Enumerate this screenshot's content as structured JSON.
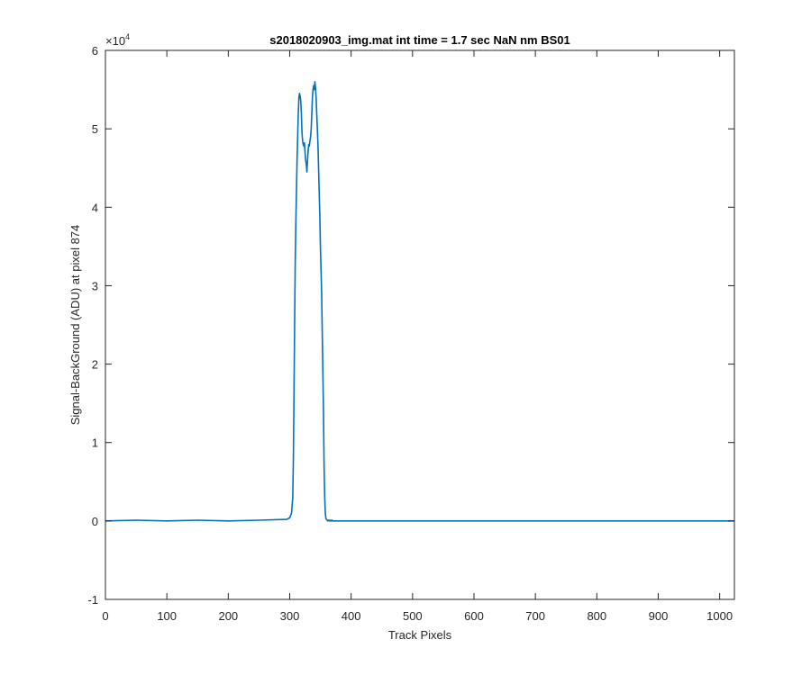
{
  "chart_data": {
    "type": "line",
    "title": "s2018020903_img.mat int time = 1.7 sec  NaN nm BS01",
    "xlabel": "Track Pixels",
    "ylabel": "Signal-BackGround (ADU) at pixel 874",
    "xlim": [
      0,
      1024
    ],
    "ylim": [
      -1,
      6
    ],
    "y_exponent_base": "×10",
    "y_exponent_power": "4",
    "x_ticks": [
      0,
      100,
      200,
      300,
      400,
      500,
      600,
      700,
      800,
      900,
      1000
    ],
    "x_tick_labels": [
      "0",
      "100",
      "200",
      "300",
      "400",
      "500",
      "600",
      "700",
      "800",
      "900",
      "1000"
    ],
    "y_ticks": [
      -1,
      0,
      1,
      2,
      3,
      4,
      5,
      6
    ],
    "y_tick_labels": [
      "-1",
      "0",
      "1",
      "2",
      "3",
      "4",
      "5",
      "6"
    ],
    "grid": false,
    "line_color": "#0072bd",
    "series": [
      {
        "x": [
          0,
          50,
          100,
          150,
          200,
          250,
          295,
          300,
          303,
          305,
          306,
          307,
          308,
          309,
          310,
          311,
          312,
          313,
          314,
          315,
          316,
          317,
          318,
          319,
          320,
          321,
          322,
          323,
          324,
          325,
          326,
          327,
          328,
          329,
          330,
          331,
          332,
          333,
          334,
          335,
          336,
          337,
          338,
          339,
          340,
          341,
          342,
          343,
          344,
          345,
          346,
          347,
          348,
          349,
          350,
          351,
          352,
          353,
          354,
          355,
          356,
          357,
          358,
          359,
          360,
          361,
          362,
          363,
          364,
          365,
          366,
          367,
          368,
          369,
          370,
          372,
          375,
          380,
          400,
          450,
          500,
          550,
          600,
          650,
          700,
          750,
          800,
          850,
          900,
          950,
          1000,
          1024
        ],
        "y": [
          0.0,
          0.01,
          0.0,
          0.01,
          0.0,
          0.01,
          0.02,
          0.04,
          0.1,
          0.3,
          0.8,
          1.6,
          2.5,
          3.3,
          3.8,
          4.2,
          4.6,
          4.9,
          5.2,
          5.4,
          5.45,
          5.42,
          5.35,
          5.2,
          4.95,
          4.85,
          4.8,
          4.78,
          4.82,
          4.7,
          4.6,
          4.55,
          4.45,
          4.6,
          4.72,
          4.8,
          4.78,
          4.85,
          4.9,
          5.0,
          5.2,
          5.4,
          5.5,
          5.55,
          5.5,
          5.6,
          5.52,
          5.4,
          5.2,
          5.0,
          4.8,
          4.5,
          4.2,
          3.9,
          3.5,
          3.2,
          2.9,
          2.4,
          1.9,
          1.4,
          0.7,
          0.3,
          0.1,
          0.03,
          0.02,
          0.01,
          0.0,
          0.01,
          0.0,
          0.01,
          0.0,
          0.01,
          0.0,
          0.01,
          0.0,
          0.0,
          0.0,
          0.0,
          0.0,
          0.0,
          0.0,
          0.0,
          0.0,
          0.0,
          0.0,
          0.0,
          0.0,
          0.0,
          0.0,
          0.0,
          0.0,
          0.0
        ]
      }
    ]
  }
}
